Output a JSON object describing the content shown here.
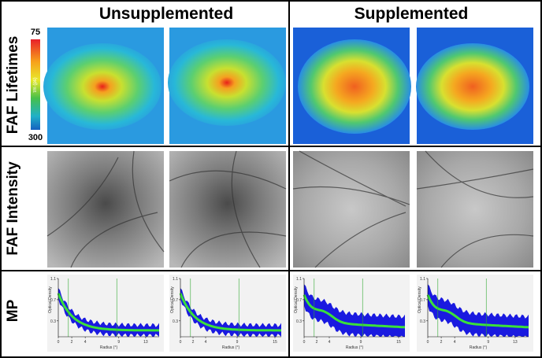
{
  "header": {
    "columns": [
      "Unsupplemented",
      "Supplemented"
    ]
  },
  "rows": [
    "FAF Lifetimes",
    "FAF Intensity",
    "MP"
  ],
  "colorbar": {
    "max": "75",
    "min": "300",
    "unit": "τm (ps)"
  },
  "mp_plots": [
    {
      "ylabel": "Optical Density",
      "xlabel": "Radius (°)",
      "xlim": [
        0,
        15
      ],
      "xticks": [
        0,
        2,
        4,
        9,
        13
      ],
      "ylim": [
        0,
        1.1
      ],
      "yticks": [
        0.3,
        0.7,
        1.1
      ]
    },
    {
      "ylabel": "Optical Density",
      "xlabel": "Radius (°)",
      "xlim": [
        0,
        16
      ],
      "xticks": [
        0,
        2,
        4,
        9,
        15
      ],
      "ylim": [
        0,
        1.1
      ],
      "yticks": [
        0.3,
        0.7,
        1.1
      ]
    },
    {
      "ylabel": "Optical Density",
      "xlabel": "Radius (°)",
      "xlim": [
        0,
        16
      ],
      "xticks": [
        0,
        2,
        4,
        9,
        15
      ],
      "ylim": [
        0,
        1.1
      ],
      "yticks": [
        0.3,
        0.7,
        1.1
      ]
    },
    {
      "ylabel": "Optical Density",
      "xlabel": "Radius (°)",
      "xlim": [
        0,
        15
      ],
      "xticks": [
        0,
        2,
        4,
        9,
        13
      ],
      "ylim": [
        0,
        1.1
      ],
      "yticks": [
        0.3,
        0.7,
        1.1
      ]
    }
  ]
}
